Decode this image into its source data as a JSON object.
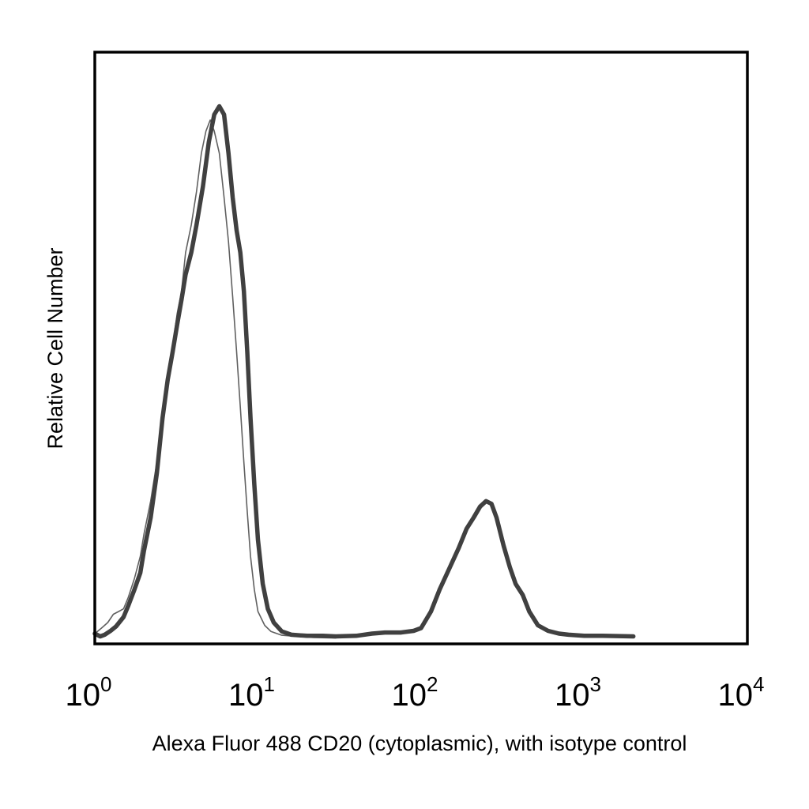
{
  "chart_data": {
    "type": "line",
    "title": "",
    "xlabel": "Alexa Fluor 488 CD20 (cytoplasmic), with isotype control",
    "ylabel": "Relative Cell Number",
    "x_scale": "log",
    "xlim": [
      1,
      10000
    ],
    "ylim": [
      0,
      100
    ],
    "grid": false,
    "x_ticks": [
      {
        "base": "10",
        "exp": "0",
        "value": 1
      },
      {
        "base": "10",
        "exp": "1",
        "value": 10
      },
      {
        "base": "10",
        "exp": "2",
        "value": 100
      },
      {
        "base": "10",
        "exp": "3",
        "value": 1000
      },
      {
        "base": "10",
        "exp": "4",
        "value": 10000
      }
    ],
    "series": [
      {
        "color": "#404040",
        "style": "thick",
        "x": [
          1.0,
          1.08,
          1.15,
          1.25,
          1.35,
          1.5,
          1.6,
          1.75,
          1.9,
          2.0,
          2.2,
          2.4,
          2.6,
          2.8,
          3.0,
          3.2,
          3.4,
          3.6,
          3.9,
          4.2,
          4.6,
          5.0,
          5.4,
          5.8,
          6.2,
          6.6,
          7.0,
          7.4,
          7.8,
          8.2,
          8.6,
          9.0,
          9.5,
          10.0,
          10.7,
          11.5,
          12.5,
          14.0,
          16.0,
          20.0,
          25.0,
          30.0,
          40.0,
          50.0,
          60.0,
          75.0,
          90.0,
          100.0,
          115.0,
          130.0,
          150.0,
          170.0,
          190.0,
          210.0,
          230.0,
          250.0,
          270.0,
          290.0,
          320.0,
          350.0,
          380.0,
          420.0,
          460.0,
          520.0,
          600.0,
          700.0,
          800.0,
          1000.0,
          1300.0,
          2000.0
        ],
        "y": [
          1.0,
          0.5,
          0.8,
          1.5,
          2.3,
          4.0,
          6.0,
          9.0,
          12.0,
          16.0,
          22.0,
          30.0,
          40.0,
          47.0,
          52.0,
          57.0,
          61.5,
          66.0,
          70.0,
          75.0,
          82.0,
          90.0,
          95.0,
          96.5,
          95.0,
          88.0,
          80.0,
          74.0,
          70.0,
          63.0,
          52.0,
          40.0,
          28.0,
          18.0,
          10.0,
          5.5,
          3.0,
          1.4,
          0.8,
          0.6,
          0.6,
          0.5,
          0.6,
          1.0,
          1.2,
          1.2,
          1.5,
          2.0,
          5.0,
          9.0,
          13.0,
          16.5,
          20.0,
          22.0,
          24.0,
          25.0,
          24.5,
          22.0,
          17.0,
          13.0,
          10.0,
          8.0,
          5.0,
          2.5,
          1.5,
          1.0,
          0.8,
          0.6,
          0.6,
          0.5
        ]
      },
      {
        "color": "#606060",
        "style": "thin",
        "x": [
          1.0,
          1.1,
          1.2,
          1.3,
          1.4,
          1.5,
          1.6,
          1.75,
          1.9,
          2.0,
          2.2,
          2.4,
          2.6,
          2.8,
          3.0,
          3.2,
          3.4,
          3.6,
          3.9,
          4.2,
          4.5,
          4.8,
          5.1,
          5.4,
          5.8,
          6.2,
          6.6,
          7.0,
          7.4,
          7.8,
          8.2,
          8.6,
          9.0,
          9.5,
          10.0,
          11.0,
          12.0,
          14.0,
          17.0,
          22.0,
          30.0
        ],
        "y": [
          1.0,
          2.0,
          3.0,
          4.5,
          5.0,
          5.5,
          7.5,
          11.0,
          15.0,
          19.0,
          25.0,
          32.0,
          40.0,
          47.0,
          53.0,
          59.0,
          63.0,
          70.0,
          75.0,
          81.0,
          88.0,
          92.0,
          94.0,
          92.0,
          88.0,
          80.0,
          72.0,
          62.0,
          52.0,
          42.0,
          32.0,
          23.0,
          15.0,
          9.0,
          5.0,
          2.5,
          1.4,
          0.7,
          0.5,
          0.3,
          0.2
        ]
      }
    ]
  }
}
